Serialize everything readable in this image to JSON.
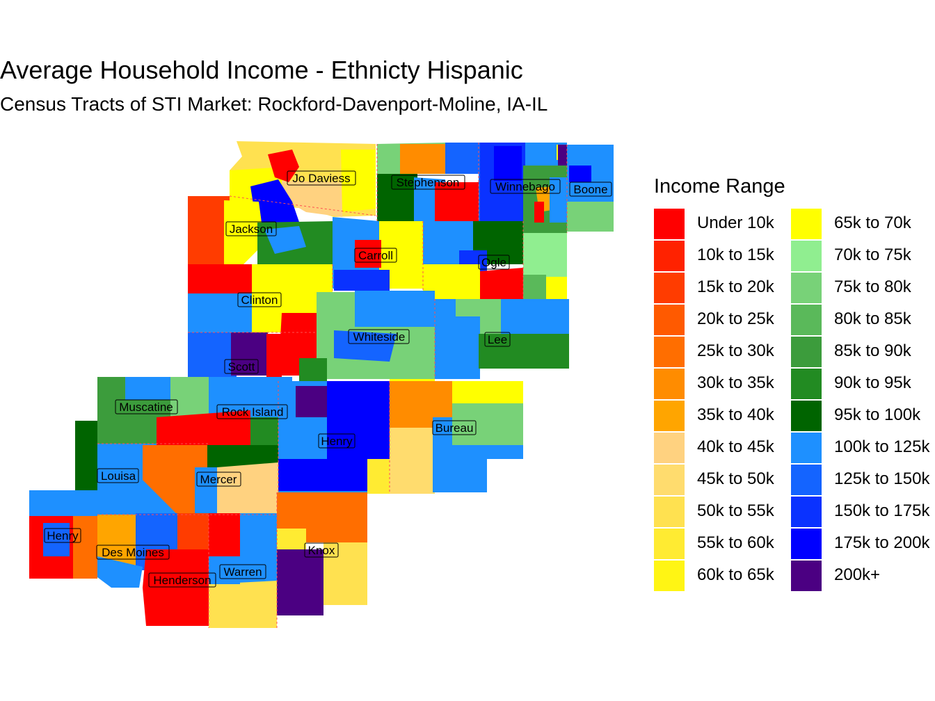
{
  "title": "Average Household Income - Ethnicty Hispanic",
  "subtitle": "Census Tracts of STI Market: Rockford-Davenport-Moline, IA-IL",
  "legend": {
    "title": "Income Range",
    "items": [
      {
        "label": "Under 10k",
        "color": "#FF0000"
      },
      {
        "label": "10k to 15k",
        "color": "#FF2200"
      },
      {
        "label": "15k to 20k",
        "color": "#FF3C00"
      },
      {
        "label": "20k to 25k",
        "color": "#FF5A00"
      },
      {
        "label": "25k to 30k",
        "color": "#FF6E00"
      },
      {
        "label": "30k to 35k",
        "color": "#FF8C00"
      },
      {
        "label": "35k to 40k",
        "color": "#FFA500"
      },
      {
        "label": "40k to 45k",
        "color": "#FFD280"
      },
      {
        "label": "45k to 50k",
        "color": "#FFDC6E"
      },
      {
        "label": "50k to 55k",
        "color": "#FFE150"
      },
      {
        "label": "55k to 60k",
        "color": "#FFEB32"
      },
      {
        "label": "60k to 65k",
        "color": "#FFF514"
      },
      {
        "label": "65k to 70k",
        "color": "#FFFF00"
      },
      {
        "label": "70k to 75k",
        "color": "#90EE90"
      },
      {
        "label": "75k to 80k",
        "color": "#78D278"
      },
      {
        "label": "80k to 85k",
        "color": "#5AB95A"
      },
      {
        "label": "85k to 90k",
        "color": "#3C9C3C"
      },
      {
        "label": "90k to 95k",
        "color": "#228B22"
      },
      {
        "label": "95k to 100k",
        "color": "#006400"
      },
      {
        "label": "100k to 125k",
        "color": "#1E90FF"
      },
      {
        "label": "125k to 150k",
        "color": "#1464FF"
      },
      {
        "label": "150k to 175k",
        "color": "#0A32FF"
      },
      {
        "label": "175k to 200k",
        "color": "#0000FF"
      },
      {
        "label": "200k+",
        "color": "#4B0082"
      }
    ]
  },
  "counties": [
    "Jo Daviess",
    "Stephenson",
    "Winnebago",
    "Boone",
    "Jackson",
    "Carroll",
    "Ogle",
    "Clinton",
    "Whiteside",
    "Lee",
    "Scott",
    "Muscatine",
    "Rock Island",
    "Henry",
    "Bureau",
    "Louisa",
    "Mercer",
    "Henry",
    "Des Moines",
    "Knox",
    "Warren",
    "Henderson"
  ]
}
